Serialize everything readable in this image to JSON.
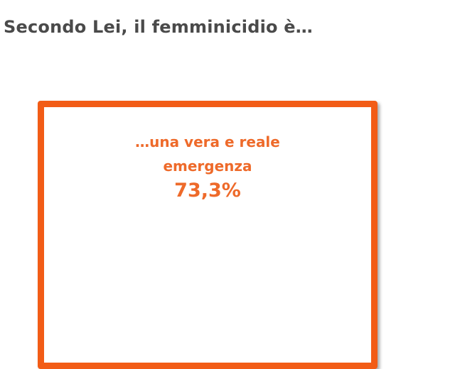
{
  "title": "Secondo Lei, il femminicidio è…",
  "card": {
    "line1": "…una vera e reale",
    "line2": "emergenza",
    "percentage": "73,3%",
    "accent_color": "#f25c16"
  }
}
